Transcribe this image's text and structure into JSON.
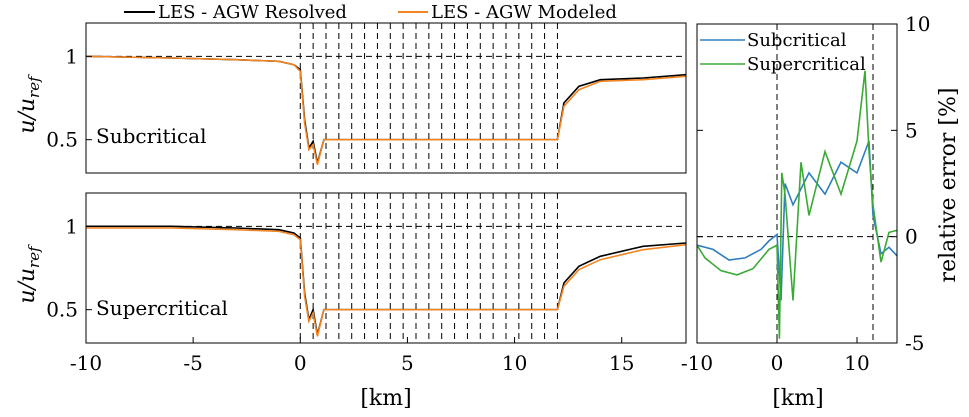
{
  "chart_data": [
    {
      "id": "top_left",
      "type": "line",
      "panel_label": "Subcritical",
      "ylabel": "u/u_ref",
      "xlim": [
        -10,
        18
      ],
      "ylim": [
        0.3,
        1.2
      ],
      "yticks": [
        0.5,
        1
      ],
      "ytick_labels": [
        "0.5",
        "1"
      ],
      "hline": 1,
      "vlines": [
        0,
        0.6,
        1.2,
        1.8,
        2.4,
        3.0,
        3.6,
        4.2,
        4.8,
        5.4,
        6.0,
        6.6,
        7.2,
        7.8,
        8.4,
        9.0,
        9.6,
        10.2,
        10.8,
        11.4,
        12.0
      ],
      "legend": [
        "LES - AGW Resolved",
        "LES - AGW Modeled"
      ],
      "series": [
        {
          "name": "LES - AGW Resolved",
          "color": "#000000",
          "x": [
            -10,
            -6,
            -3,
            -1,
            -0.3,
            0,
            0.2,
            0.4,
            0.6,
            0.8,
            1.1,
            6,
            12,
            12.3,
            13,
            14,
            16,
            18
          ],
          "y": [
            1.0,
            0.99,
            0.98,
            0.97,
            0.95,
            0.92,
            0.62,
            0.45,
            0.49,
            0.36,
            0.5,
            0.5,
            0.5,
            0.72,
            0.82,
            0.86,
            0.87,
            0.89
          ]
        },
        {
          "name": "LES - AGW Modeled",
          "color": "#f28522",
          "x": [
            -10,
            -6,
            -3,
            -1,
            -0.3,
            0,
            0.2,
            0.4,
            0.6,
            0.8,
            1.1,
            6,
            12,
            12.3,
            13,
            14,
            16,
            18
          ],
          "y": [
            1.0,
            0.99,
            0.98,
            0.97,
            0.95,
            0.91,
            0.6,
            0.44,
            0.47,
            0.35,
            0.5,
            0.5,
            0.5,
            0.7,
            0.8,
            0.85,
            0.86,
            0.88
          ]
        }
      ]
    },
    {
      "id": "bottom_left",
      "type": "line",
      "panel_label": "Supercritical",
      "ylabel": "u/u_ref",
      "xlabel": "[km]",
      "xlim": [
        -10,
        18
      ],
      "ylim": [
        0.3,
        1.2
      ],
      "xticks": [
        -10,
        -5,
        0,
        5,
        10,
        15
      ],
      "xtick_labels": [
        "-10",
        "-5",
        "0",
        "5",
        "10",
        "15"
      ],
      "yticks": [
        0.5,
        1
      ],
      "ytick_labels": [
        "0.5",
        "1"
      ],
      "hline": 1,
      "vlines": [
        0,
        0.6,
        1.2,
        1.8,
        2.4,
        3.0,
        3.6,
        4.2,
        4.8,
        5.4,
        6.0,
        6.6,
        7.2,
        7.8,
        8.4,
        9.0,
        9.6,
        10.2,
        10.8,
        11.4,
        12.0
      ],
      "series": [
        {
          "name": "LES - AGW Resolved",
          "color": "#000000",
          "x": [
            -10,
            -6,
            -3,
            -1,
            -0.3,
            0,
            0.2,
            0.4,
            0.6,
            0.8,
            1.1,
            6,
            12,
            12.3,
            13,
            14,
            16,
            18
          ],
          "y": [
            1.0,
            1.0,
            0.99,
            0.98,
            0.96,
            0.93,
            0.6,
            0.44,
            0.5,
            0.35,
            0.5,
            0.5,
            0.5,
            0.66,
            0.76,
            0.82,
            0.88,
            0.9
          ]
        },
        {
          "name": "LES - AGW Modeled",
          "color": "#f28522",
          "x": [
            -10,
            -6,
            -3,
            -1,
            -0.3,
            0,
            0.2,
            0.4,
            0.6,
            0.8,
            1.1,
            6,
            12,
            12.3,
            13,
            14,
            16,
            18
          ],
          "y": [
            0.99,
            0.99,
            0.98,
            0.97,
            0.95,
            0.92,
            0.58,
            0.43,
            0.48,
            0.34,
            0.5,
            0.5,
            0.5,
            0.64,
            0.74,
            0.8,
            0.86,
            0.89
          ]
        }
      ]
    },
    {
      "id": "right",
      "type": "line",
      "ylabel": "relative error [%]",
      "xlabel": "[km]",
      "xlim": [
        -10,
        15
      ],
      "ylim": [
        -5,
        10
      ],
      "xticks": [
        -10,
        0,
        10
      ],
      "xtick_labels": [
        "-10",
        "0",
        "10"
      ],
      "yticks": [
        -5,
        0,
        5,
        10
      ],
      "ytick_labels": [
        "-5",
        "0",
        "5",
        "10"
      ],
      "hline": 0,
      "vlines": [
        0,
        12
      ],
      "legend": [
        "Subcritical",
        "Supercritical"
      ],
      "series": [
        {
          "name": "Subcritical",
          "color": "#2e7ebf",
          "x": [
            -10,
            -8,
            -6,
            -4,
            -2,
            -1,
            0,
            0.5,
            1.0,
            2,
            4,
            6,
            8,
            10,
            11.5,
            12,
            13,
            14,
            15
          ],
          "y": [
            -0.4,
            -0.6,
            -1.1,
            -1.0,
            -0.6,
            -0.2,
            0.1,
            -3.0,
            2.5,
            1.5,
            3.0,
            2.0,
            3.5,
            3.0,
            4.5,
            1.0,
            -0.8,
            -0.5,
            -0.9
          ]
        },
        {
          "name": "Supercritical",
          "color": "#3aaa35",
          "x": [
            -10,
            -9,
            -7,
            -5,
            -3,
            -1,
            0,
            0.3,
            0.6,
            1.0,
            2,
            3,
            4,
            6,
            8,
            10,
            11,
            11.5,
            12,
            13,
            14,
            15
          ],
          "y": [
            -0.4,
            -1.0,
            -1.6,
            -1.8,
            -1.5,
            -0.6,
            -0.4,
            -4.8,
            3.0,
            2.0,
            -3.0,
            3.5,
            1.0,
            4.0,
            2.0,
            4.5,
            7.8,
            4.0,
            1.5,
            -1.2,
            0.2,
            0.3
          ]
        }
      ]
    }
  ]
}
